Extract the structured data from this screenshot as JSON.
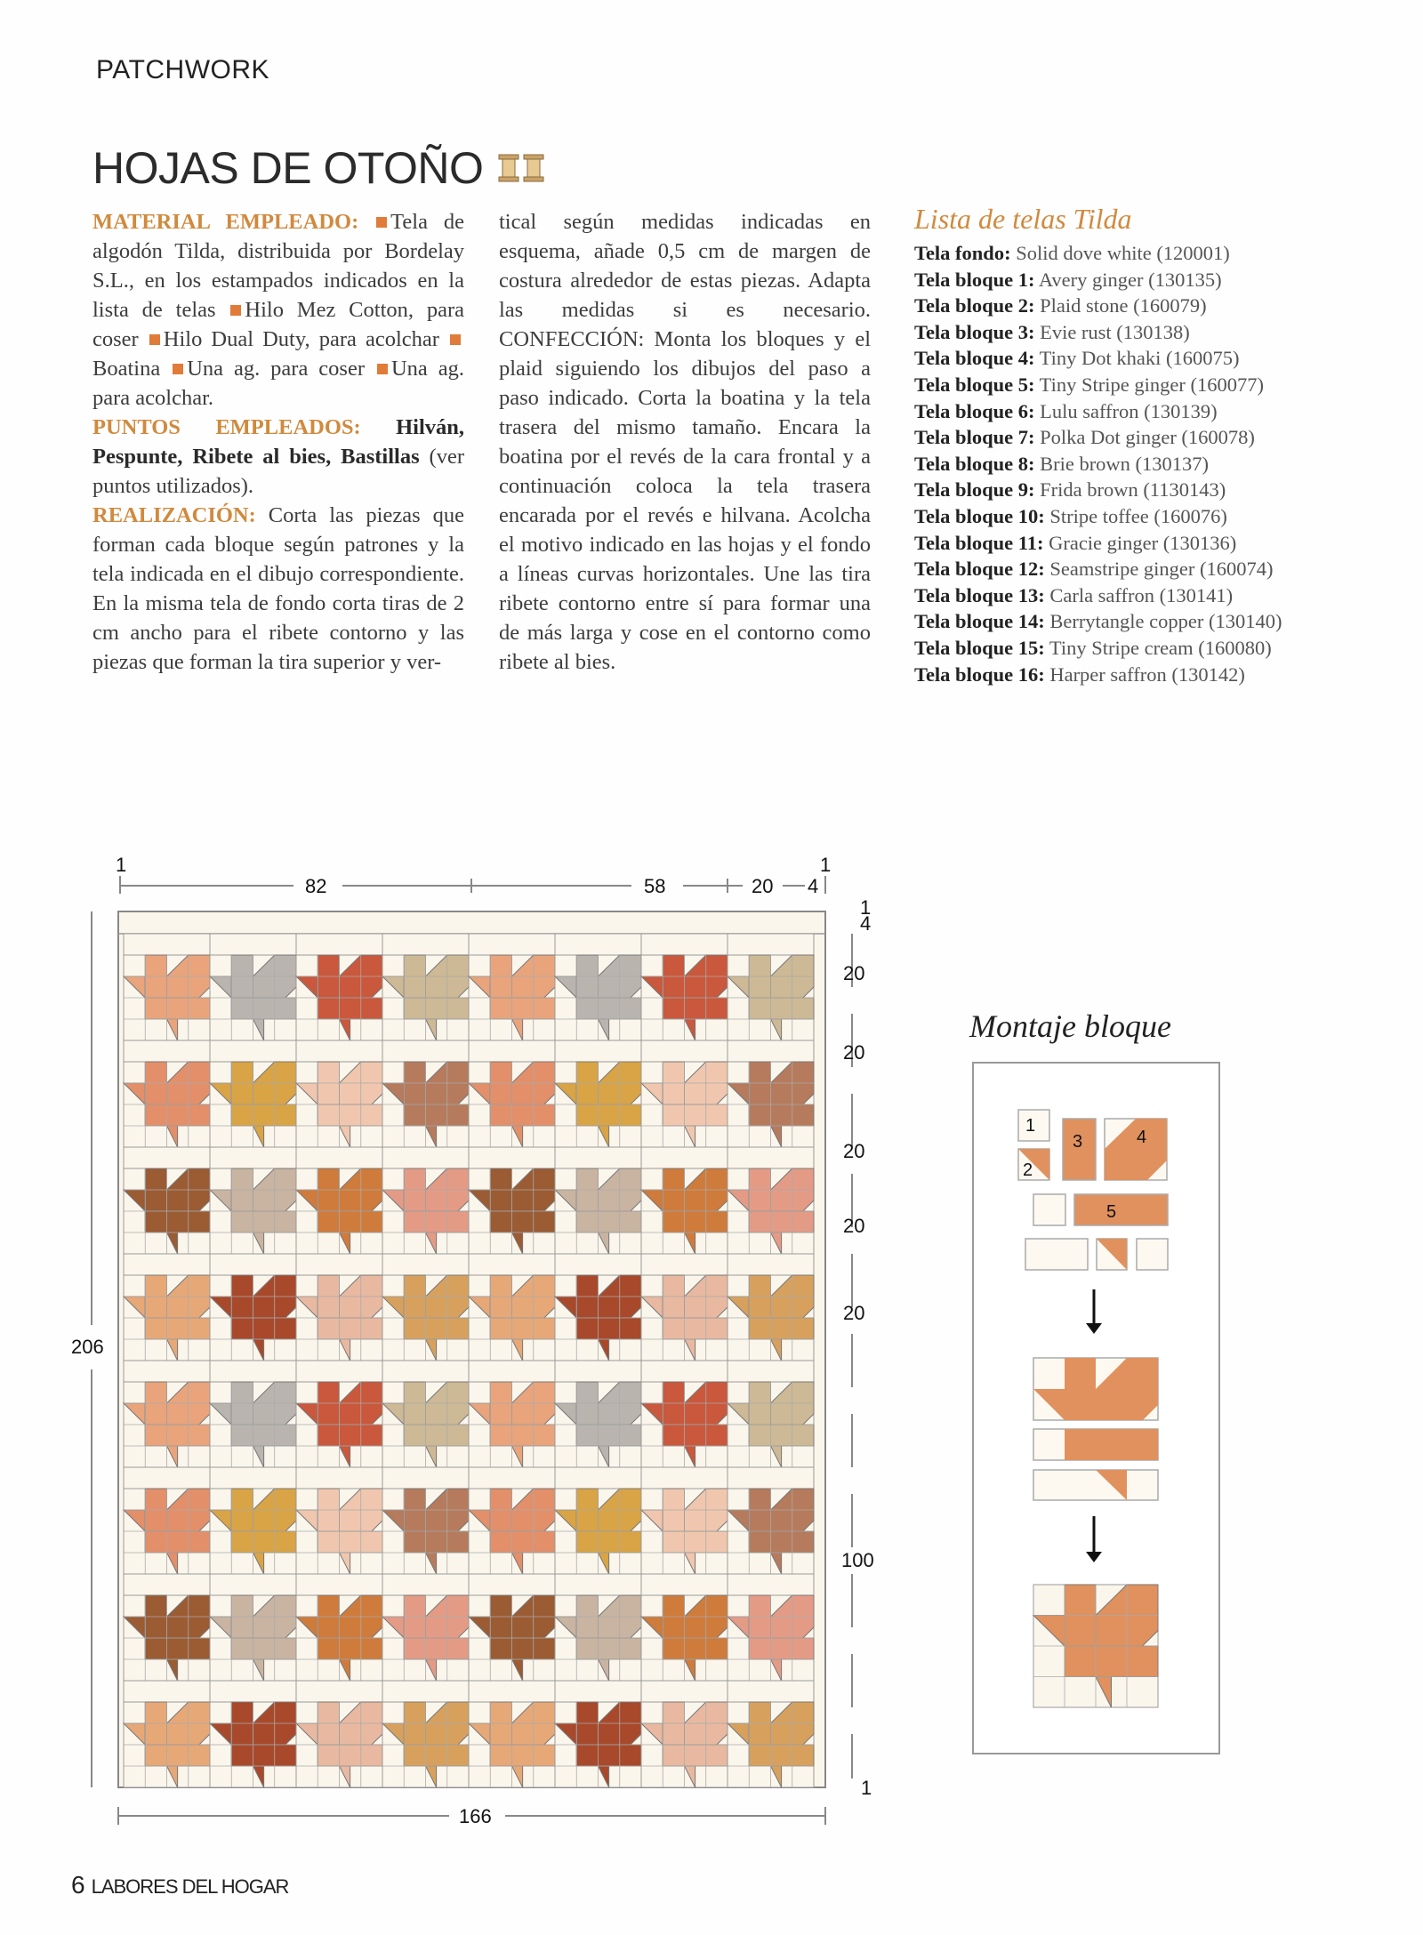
{
  "header": {
    "section": "PATCHWORK"
  },
  "title": {
    "text": "HOJAS DE OTOÑO",
    "icon": "thread-spools-icon"
  },
  "body": {
    "material_label": "MATERIAL EMPLEADO:",
    "material_items": [
      "Tela de algodón Tilda, distribuida por Bordelay S.L., en los estampados indicados en la lista de telas",
      "Hilo Mez Cotton, para coser",
      "Hilo Dual Duty, para acolchar",
      "Boatina",
      "Una ag. para coser",
      "Una ag. para acolchar."
    ],
    "puntos_label": "PUNTOS EMPLEADOS:",
    "puntos_bold": "Hilván, Pespunte, Ribete al bies, Bastillas",
    "puntos_rest": "(ver puntos utilizados).",
    "realizacion_label": "REALIZACIÓN:",
    "realizacion_col1": "Corta las piezas que forman cada bloque según patrones y la tela indicada en el dibujo correspondiente. En la misma tela de fondo corta tiras de 2 cm ancho para el ribete contorno y las piezas que forman la tira superior y ver-",
    "realizacion_col2": "tical según medidas indicadas en esquema, añade 0,5 cm de margen de costura alrededor de estas piezas. Adapta las medidas si es necesario.",
    "confeccion": "CONFECCIÓN: Monta los bloques y el plaid siguiendo los dibujos del paso a paso indicado. Corta la boatina y la tela trasera del mismo tamaño. Encara la boatina por el revés de la cara frontal y a continuación coloca la tela trasera encarada por el revés e hilvana. Acolcha el motivo indicado en las hojas y el fondo a líneas curvas horizontales. Une las tira ribete contorno entre sí para formar una de más larga y cose en el contorno como ribete al bies."
  },
  "fabrics": {
    "title": "Lista de telas Tilda",
    "items": [
      {
        "label": "Tela fondo:",
        "value": "Solid dove white (120001)"
      },
      {
        "label": "Tela bloque 1:",
        "value": "Avery ginger (130135)"
      },
      {
        "label": "Tela bloque 2:",
        "value": "Plaid stone (160079)"
      },
      {
        "label": "Tela bloque 3:",
        "value": "Evie rust (130138)"
      },
      {
        "label": "Tela bloque 4:",
        "value": "Tiny Dot khaki (160075)"
      },
      {
        "label": "Tela bloque 5:",
        "value": "Tiny Stripe ginger (160077)"
      },
      {
        "label": "Tela bloque 6:",
        "value": "Lulu saffron (130139)"
      },
      {
        "label": "Tela bloque 7:",
        "value": "Polka Dot ginger (160078)"
      },
      {
        "label": "Tela bloque 8:",
        "value": "Brie brown (130137)"
      },
      {
        "label": "Tela bloque 9:",
        "value": "Frida brown (1130143)"
      },
      {
        "label": "Tela bloque 10:",
        "value": "Stripe toffee (160076)"
      },
      {
        "label": "Tela bloque 11:",
        "value": "Gracie ginger (130136)"
      },
      {
        "label": "Tela bloque 12:",
        "value": "Seamstripe ginger (160074)"
      },
      {
        "label": "Tela bloque 13:",
        "value": "Carla saffron (130141)"
      },
      {
        "label": "Tela bloque 14:",
        "value": "Berrytangle copper (130140)"
      },
      {
        "label": "Tela bloque 15:",
        "value": "Tiny Stripe cream (160080)"
      },
      {
        "label": "Tela bloque 16:",
        "value": "Harper saffron (130142)"
      }
    ]
  },
  "quilt": {
    "dims_top": [
      "1",
      "82",
      "58",
      "20",
      "4",
      "1"
    ],
    "dims_right": [
      "1",
      "4",
      "20",
      "20",
      "20",
      "20",
      "20",
      "100",
      "1"
    ],
    "dim_left": "206",
    "dim_bottom": "166",
    "background_color": "#fbf6ec",
    "leaf_colors": [
      [
        "#e9a47c",
        "#b9b5ae",
        "#c9583c",
        "#cdb995"
      ],
      [
        "#e38f6a",
        "#d9a445",
        "#f0c7ae",
        "#b67b5c"
      ],
      [
        "#9b5b33",
        "#c9b4a1",
        "#cf7b3b",
        "#e49b86"
      ],
      [
        "#e7a877",
        "#a8492b",
        "#e8b9a0",
        "#d7a15d"
      ]
    ]
  },
  "montaje": {
    "title": "Montaje bloque",
    "pieces": [
      "1",
      "2",
      "3",
      "4",
      "5"
    ],
    "fabric_color": "#e0915e"
  },
  "footer": {
    "page": "6",
    "magazine": "LABORES DEL HOGAR"
  }
}
